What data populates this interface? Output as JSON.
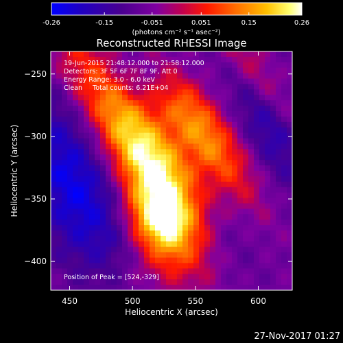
{
  "colorbar": {
    "ticks": [
      "-0.26",
      "-0.15",
      "-0.051",
      "0.051",
      "0.15",
      "0.26"
    ],
    "tick_values": [
      -0.26,
      -0.15,
      -0.051,
      0.051,
      0.15,
      0.26
    ],
    "range": [
      -0.26,
      0.26
    ],
    "unit_label": "(photons cm⁻² s⁻¹ asec⁻²)",
    "colors": [
      "#0000ff",
      "#2a00b0",
      "#4a0088",
      "#7a00a0",
      "#c00040",
      "#ff2000",
      "#ff7000",
      "#ffc000",
      "#ffff60",
      "#ffffff"
    ]
  },
  "chart_data": {
    "type": "heatmap",
    "title": "Reconstructed RHESSI Image",
    "xlabel": "Heliocentric X (arcsec)",
    "ylabel": "Heliocentric Y (arcsec)",
    "xlim": [
      435,
      627
    ],
    "ylim": [
      -423,
      -232
    ],
    "xticks": [
      450,
      500,
      550,
      600
    ],
    "yticks": [
      -250,
      -300,
      -350,
      -400
    ],
    "peak": [
      524,
      -329
    ],
    "annotations": [
      "19-Jun-2015 21:48:12.000 to 21:58:12.000",
      "Detectors: 3F 5F 6F 7F 8F 9F, Att 0",
      "Energy Range: 3.0 - 6.0 keV",
      "Clean     Total counts: 6.21E+04"
    ],
    "peak_label": "Position of Peak = [524,-329]"
  },
  "footer": {
    "date": "27-Nov-2017 01:27"
  }
}
